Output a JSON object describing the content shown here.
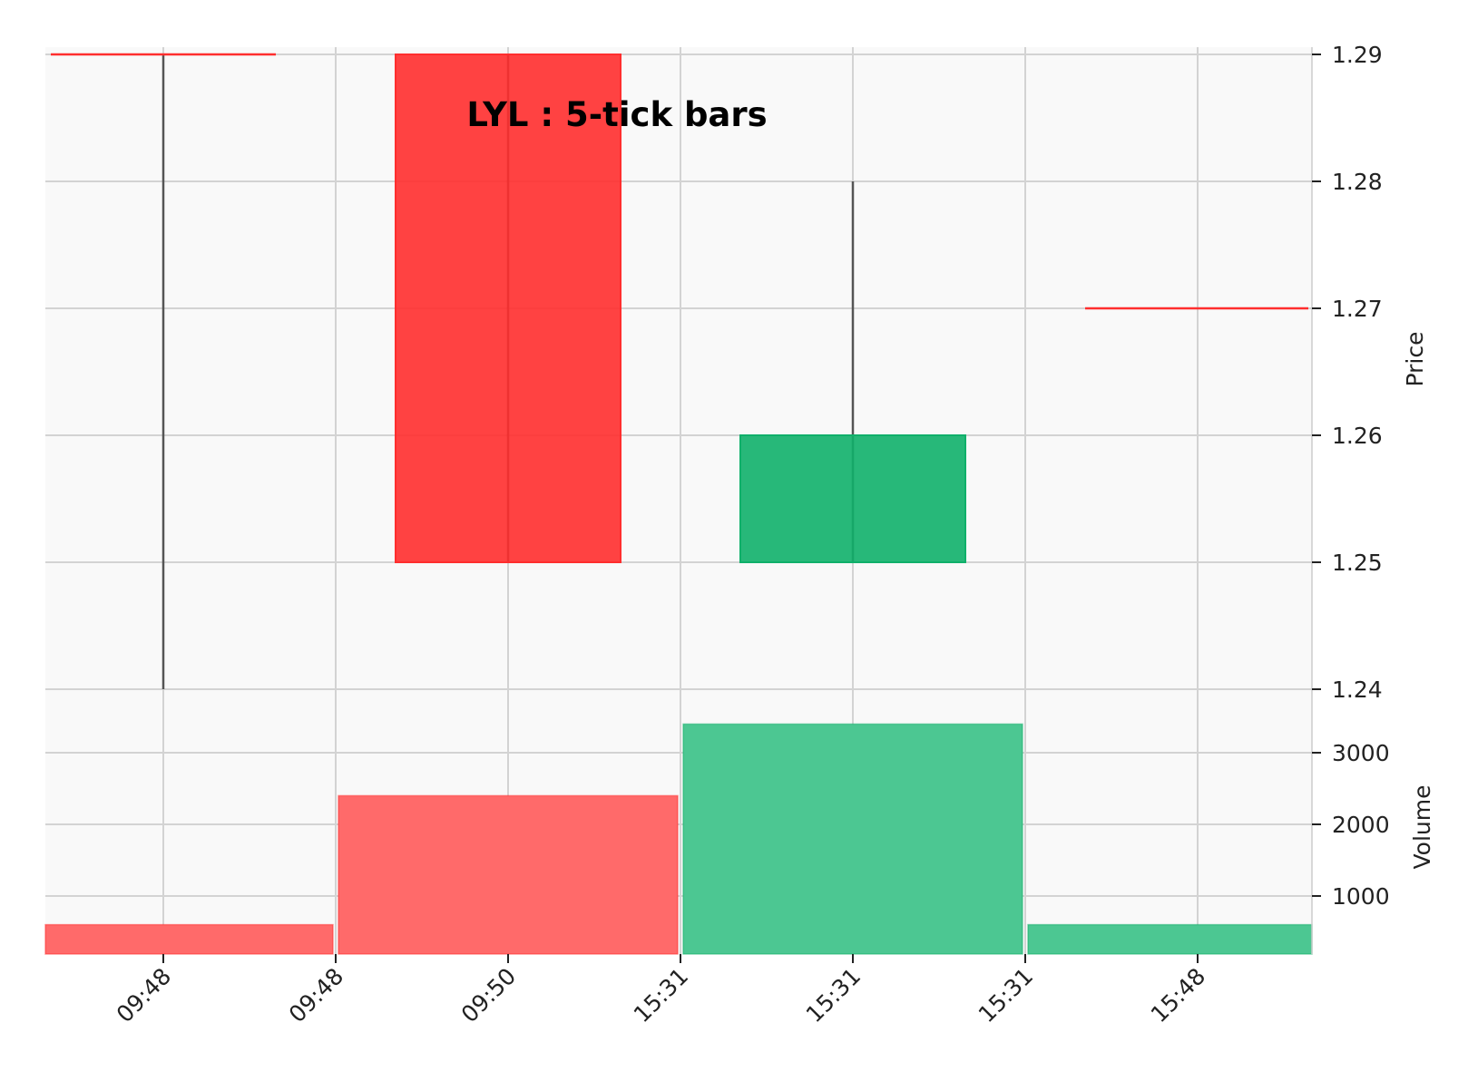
{
  "chart_data": {
    "type": "candlestick",
    "title": "LYL : 5-tick bars",
    "x_tick_labels": [
      "09:48",
      "09:48",
      "09:50",
      "15:31",
      "15:31",
      "15:31",
      "15:48"
    ],
    "price_axis": {
      "label": "Price",
      "ylim": [
        1.24,
        1.29
      ],
      "ticks": [
        "1.24",
        "1.25",
        "1.26",
        "1.27",
        "1.28",
        "1.29"
      ],
      "side": "right"
    },
    "volume_axis": {
      "label": "Volume",
      "ticks": [
        "1000",
        "2000",
        "3000"
      ],
      "side": "right"
    },
    "candles": [
      {
        "x_tick": "09:48",
        "open": 1.29,
        "high": 1.29,
        "low": 1.24,
        "close": 1.29,
        "direction": "down"
      },
      {
        "x_tick": "09:50",
        "open": 1.29,
        "high": 1.29,
        "low": 1.25,
        "close": 1.25,
        "direction": "down"
      },
      {
        "x_tick": "15:31",
        "open": 1.25,
        "high": 1.28,
        "low": 1.25,
        "close": 1.26,
        "direction": "up"
      },
      {
        "x_tick": "15:48",
        "open": 1.27,
        "high": 1.27,
        "low": 1.27,
        "close": 1.27,
        "direction": "down"
      }
    ],
    "volume_bars": [
      {
        "volume": 600,
        "direction": "down"
      },
      {
        "volume": 2400,
        "direction": "down"
      },
      {
        "volume": 3400,
        "direction": "up"
      },
      {
        "volume": 600,
        "direction": "up"
      }
    ],
    "grid": true,
    "colors": {
      "up": "#0fb06a",
      "down": "#ff2e2e",
      "up_volume": "#4cc792",
      "down_volume": "#ff6a6a",
      "wick": "#555555",
      "panel_background": "#f9f9f9",
      "grid": "#d3d3d3"
    }
  }
}
